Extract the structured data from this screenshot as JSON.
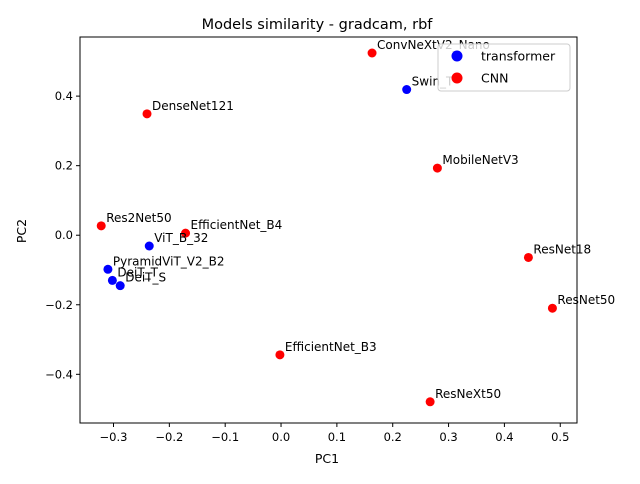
{
  "chart_data": {
    "type": "scatter",
    "title": "Models similarity - gradcam, rbf",
    "xlabel": "PC1",
    "ylabel": "PC2",
    "xlim": [
      -0.36,
      0.53
    ],
    "ylim": [
      -0.54,
      0.57
    ],
    "xticks": [
      -0.3,
      -0.2,
      -0.1,
      0.0,
      0.1,
      0.2,
      0.3,
      0.4,
      0.5
    ],
    "xtick_labels": [
      "−0.3",
      "−0.2",
      "−0.1",
      "0.0",
      "0.1",
      "0.2",
      "0.3",
      "0.4",
      "0.5"
    ],
    "yticks": [
      -0.4,
      -0.2,
      0.0,
      0.2,
      0.4
    ],
    "ytick_labels": [
      "−0.4",
      "−0.2",
      "0.0",
      "0.2",
      "0.4"
    ],
    "grid": false,
    "legend_position": "top-right",
    "series": [
      {
        "name": "transformer",
        "color": "#0000ff",
        "points": [
          {
            "label": "Swin_T",
            "x": 0.225,
            "y": 0.419
          },
          {
            "label": "ViT_B_32",
            "x": -0.236,
            "y": -0.031
          },
          {
            "label": "PyramidViT_V2_B2",
            "x": -0.31,
            "y": -0.098
          },
          {
            "label": "DeiT_T",
            "x": -0.302,
            "y": -0.13
          },
          {
            "label": "DeiT_S",
            "x": -0.288,
            "y": -0.145
          }
        ]
      },
      {
        "name": "CNN",
        "color": "#ff0000",
        "points": [
          {
            "label": "ConvNeXtV2_Nano",
            "x": 0.163,
            "y": 0.524
          },
          {
            "label": "DenseNet121",
            "x": -0.24,
            "y": 0.349
          },
          {
            "label": "MobileNetV3",
            "x": 0.28,
            "y": 0.193
          },
          {
            "label": "Res2Net50",
            "x": -0.322,
            "y": 0.027
          },
          {
            "label": "EfficientNet_B4",
            "x": -0.171,
            "y": 0.006
          },
          {
            "label": "ResNet18",
            "x": 0.443,
            "y": -0.064
          },
          {
            "label": "ResNet50",
            "x": 0.486,
            "y": -0.21
          },
          {
            "label": "EfficientNet_B3",
            "x": -0.002,
            "y": -0.344
          },
          {
            "label": "ResNeXt50",
            "x": 0.267,
            "y": -0.479
          }
        ]
      }
    ]
  }
}
